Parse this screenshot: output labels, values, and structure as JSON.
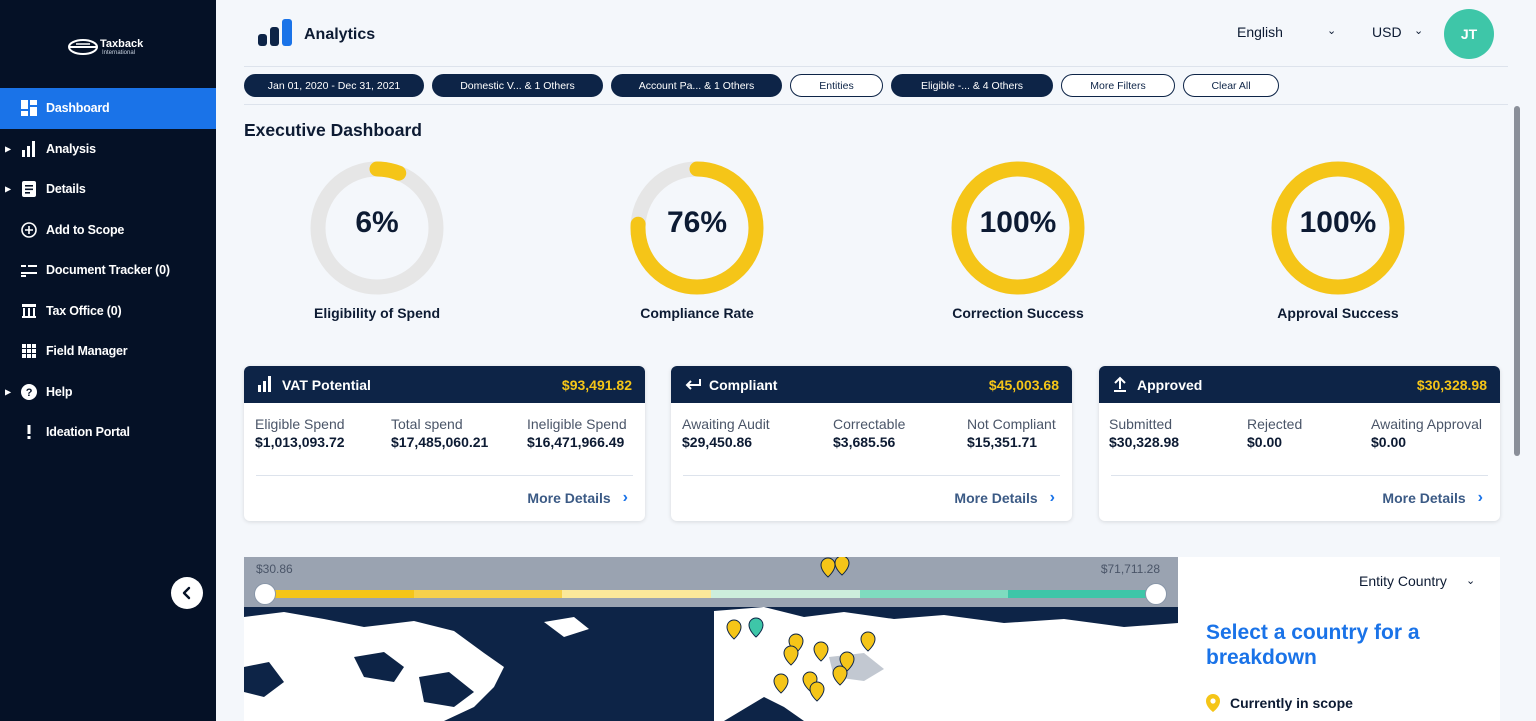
{
  "sidebar": {
    "logo_text": "Taxback",
    "logo_sub": "International",
    "items": [
      {
        "label": "Dashboard",
        "icon": "dashboard-icon",
        "has_caret": false,
        "active": true
      },
      {
        "label": "Analysis",
        "icon": "bar-chart-icon",
        "has_caret": true,
        "active": false
      },
      {
        "label": "Details",
        "icon": "list-document-icon",
        "has_caret": true,
        "active": false
      },
      {
        "label": "Add to Scope",
        "icon": "plus-circle-icon",
        "has_caret": false,
        "active": false
      },
      {
        "label": "Document Tracker (0)",
        "icon": "document-tracker-icon",
        "has_caret": false,
        "active": false
      },
      {
        "label": "Tax Office (0)",
        "icon": "tax-office-icon",
        "has_caret": false,
        "active": false
      },
      {
        "label": "Field Manager",
        "icon": "grid-icon",
        "has_caret": false,
        "active": false
      },
      {
        "label": "Help",
        "icon": "help-icon",
        "has_caret": true,
        "active": false
      },
      {
        "label": "Ideation Portal",
        "icon": "exclamation-icon",
        "has_caret": false,
        "active": false
      }
    ],
    "collapse_icon": "chevron-left-icon"
  },
  "header": {
    "title": "Analytics",
    "language": "English",
    "currency": "USD",
    "avatar_initials": "JT"
  },
  "filters": [
    {
      "label": "Jan 01, 2020 - Dec 31, 2021",
      "style": "dark"
    },
    {
      "label": "Domestic V... & 1 Others",
      "style": "dark"
    },
    {
      "label": "Account Pa... & 1 Others",
      "style": "dark"
    },
    {
      "label": "Entities",
      "style": "light"
    },
    {
      "label": "Eligible -... & 4 Others",
      "style": "dark"
    },
    {
      "label": "More Filters",
      "style": "light"
    },
    {
      "label": "Clear All",
      "style": "light"
    }
  ],
  "page_title": "Executive Dashboard",
  "gauges": [
    {
      "value": "6%",
      "percent": 6,
      "label": "Eligibility of Spend"
    },
    {
      "value": "76%",
      "percent": 76,
      "label": "Compliance Rate"
    },
    {
      "value": "100%",
      "percent": 100,
      "label": "Correction Success"
    },
    {
      "value": "100%",
      "percent": 100,
      "label": "Approval Success"
    }
  ],
  "cards": {
    "vat": {
      "title": "VAT Potential",
      "amount": "$93,491.82",
      "cols": [
        {
          "label": "Eligible Spend",
          "value": "$1,013,093.72"
        },
        {
          "label": "Total spend",
          "value": "$17,485,060.21"
        },
        {
          "label": "Ineligible Spend",
          "value": "$16,471,966.49"
        }
      ],
      "more": "More Details"
    },
    "compliant": {
      "title": "Compliant",
      "amount": "$45,003.68",
      "cols": [
        {
          "label": "Awaiting Audit",
          "value": "$29,450.86"
        },
        {
          "label": "Correctable",
          "value": "$3,685.56"
        },
        {
          "label": "Not Compliant",
          "value": "$15,351.71"
        }
      ],
      "more": "More Details"
    },
    "approved": {
      "title": "Approved",
      "amount": "$30,328.98",
      "cols": [
        {
          "label": "Submitted",
          "value": "$30,328.98"
        },
        {
          "label": "Rejected",
          "value": "$0.00"
        },
        {
          "label": "Awaiting Approval",
          "value": "$0.00"
        }
      ],
      "more": "More Details"
    }
  },
  "map": {
    "range_min": "$30.86",
    "range_max": "$71,711.28",
    "scale_colors": [
      "#f5c518",
      "#f7d04a",
      "#fbe89a",
      "#cdeedc",
      "#7fdcbf",
      "#3ec6a8"
    ]
  },
  "side_panel": {
    "entity_select": "Entity Country",
    "title": "Select a country for a breakdown",
    "legend_label": "Currently in scope"
  },
  "colors": {
    "accent": "#1a73e8",
    "gauge": "#f5c518",
    "navy": "#0d2447"
  }
}
